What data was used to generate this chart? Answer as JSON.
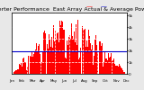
{
  "title": "Solar PV/Inverter Performance  East Array Actual & Average Power Output",
  "title_fontsize": 4.5,
  "bg_color": "#e8e8e8",
  "plot_bg_color": "#ffffff",
  "area_color": "#ff0000",
  "avg_line_color": "#0000cc",
  "avg_line_y": 0.38,
  "grid_color": "#ffffff",
  "ylabel_color": "#000000",
  "num_bars": 120,
  "seed": 42
}
